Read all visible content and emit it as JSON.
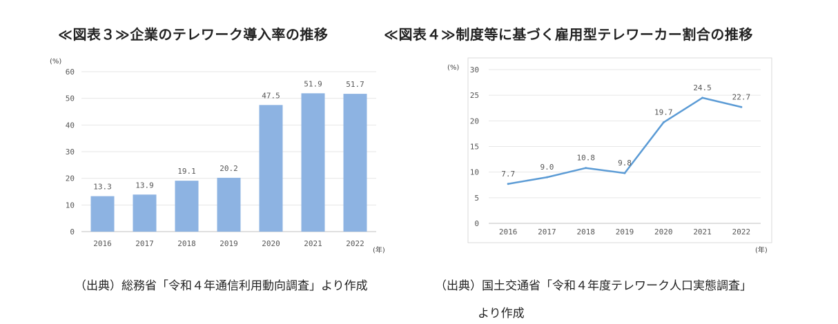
{
  "titles": {
    "left": "≪図表３≫企業のテレワーク導入率の推移",
    "right": "≪図表４≫制度等に基づく雇用型テレワーカー割合の推移"
  },
  "sources": {
    "left": "（出典）総務省「令和４年通信利用動向調査」より作成",
    "right_line1": "（出典）国土交通省「令和４年度テレワーク人口実態調査」",
    "right_line2": "より作成"
  },
  "chart_data": [
    {
      "type": "bar",
      "categories": [
        "2016",
        "2017",
        "2018",
        "2019",
        "2020",
        "2021",
        "2022"
      ],
      "values": [
        13.3,
        13.9,
        19.1,
        20.2,
        47.5,
        51.9,
        51.7
      ],
      "value_labels": [
        "13.3",
        "13.9",
        "19.1",
        "20.2",
        "47.5",
        "51.9",
        "51.7"
      ],
      "ylim": [
        0,
        60
      ],
      "yticks": [
        0,
        10,
        20,
        30,
        40,
        50,
        60
      ],
      "yunit": "(%)",
      "xunit": "(年)",
      "grid": true,
      "color": "#8db3e2"
    },
    {
      "type": "line",
      "categories": [
        "2016",
        "2017",
        "2018",
        "2019",
        "2020",
        "2021",
        "2022"
      ],
      "values": [
        7.7,
        9.0,
        10.8,
        9.8,
        19.7,
        24.5,
        22.7
      ],
      "value_labels": [
        "7.7",
        "9.0",
        "10.8",
        "9.8",
        "19.7",
        "24.5",
        "22.7"
      ],
      "ylim": [
        0,
        30
      ],
      "yticks": [
        0,
        5,
        10,
        15,
        20,
        25,
        30
      ],
      "yunit": "(%)",
      "xunit": "(年)",
      "grid": true,
      "color": "#5b9bd5"
    }
  ]
}
